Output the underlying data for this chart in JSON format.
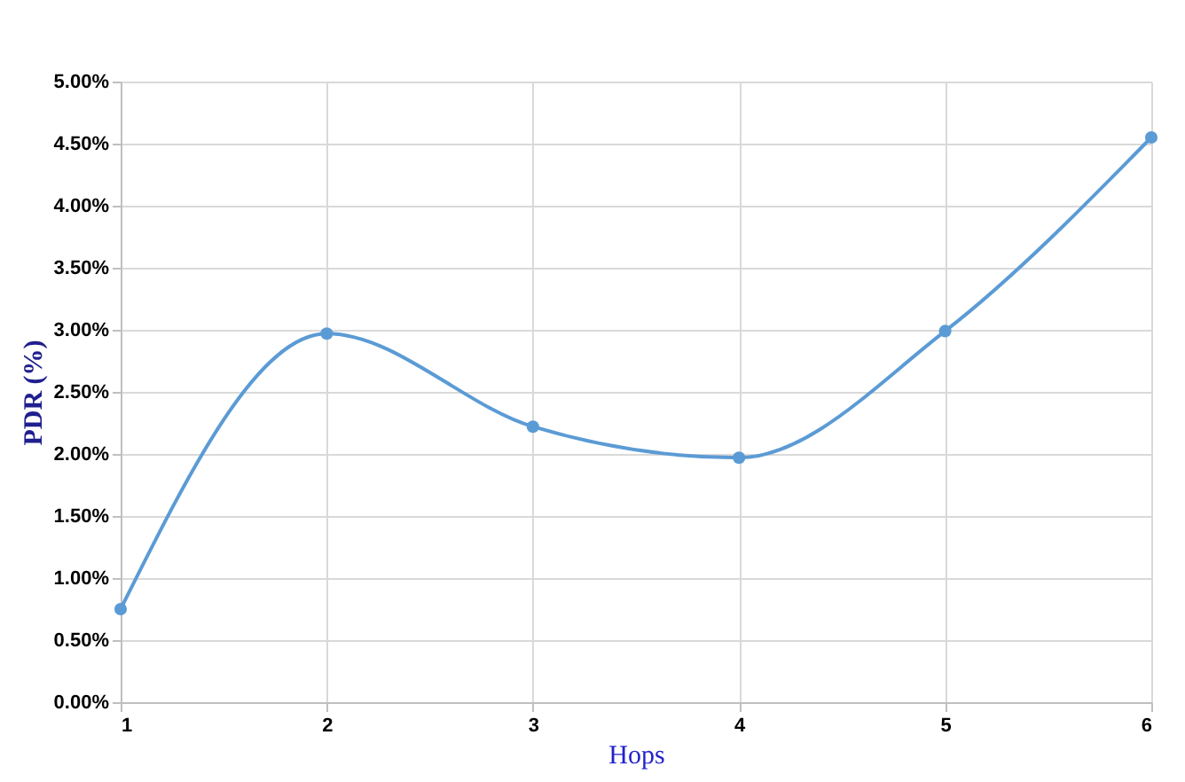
{
  "chart_data": {
    "type": "line",
    "xlabel": "Hops",
    "ylabel": "PDR (%)",
    "x": [
      1,
      2,
      3,
      4,
      5,
      6
    ],
    "series": [
      {
        "color": "#5b9bd5",
        "values": [
          0.75,
          2.97,
          2.22,
          1.97,
          2.99,
          4.55
        ]
      }
    ],
    "xlim": [
      1,
      6
    ],
    "xticks": [
      1,
      2,
      3,
      4,
      5,
      6
    ],
    "ylim": [
      0,
      5
    ],
    "yticks": [
      {
        "value": 0,
        "label": "0.00%"
      },
      {
        "value": 0.5,
        "label": "0.50%"
      },
      {
        "value": 1,
        "label": "1.00%"
      },
      {
        "value": 1.5,
        "label": "1.50%"
      },
      {
        "value": 2,
        "label": "2.00%"
      },
      {
        "value": 2.5,
        "label": "2.50%"
      },
      {
        "value": 3,
        "label": "3.00%"
      },
      {
        "value": 3.5,
        "label": "3.50%"
      },
      {
        "value": 4,
        "label": "4.00%"
      },
      {
        "value": 4.5,
        "label": "4.50%"
      },
      {
        "value": 5,
        "label": "5.00%"
      }
    ],
    "grid": true,
    "marker": "circle",
    "line_style": "solid"
  }
}
